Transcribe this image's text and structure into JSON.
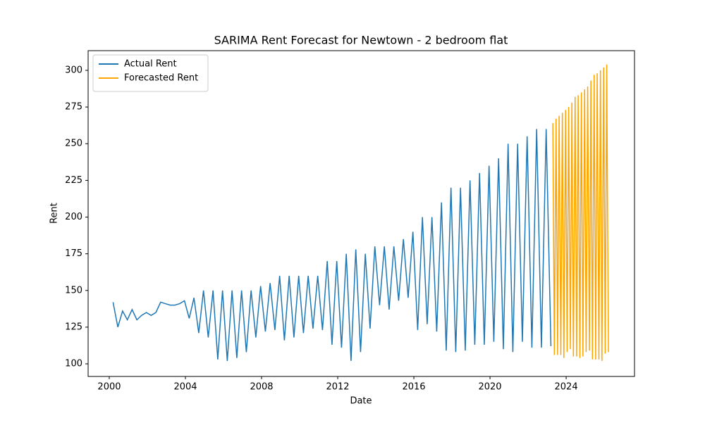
{
  "chart_data": {
    "type": "line",
    "title": "SARIMA Rent Forecast for Newtown - 2 bedroom flat",
    "x_label": "Date",
    "y_label": "Rent",
    "xlim": [
      1998.89,
      2027.59
    ],
    "ylim": [
      91.4,
      313.4
    ],
    "xticks": [
      2000,
      2004,
      2008,
      2012,
      2016,
      2020,
      2024
    ],
    "yticks": [
      100,
      125,
      150,
      175,
      200,
      225,
      250,
      275,
      300
    ],
    "legend": "upper left",
    "grid": false,
    "series": [
      {
        "name": "Actual Rent",
        "color": "#1f77b4",
        "x": [
          2000.2,
          2000.45,
          2000.7,
          2000.95,
          2001.2,
          2001.45,
          2001.7,
          2001.95,
          2002.2,
          2002.45,
          2002.7,
          2002.95,
          2003.2,
          2003.45,
          2003.7,
          2003.95,
          2004.2,
          2004.45,
          2004.7,
          2004.95,
          2005.2,
          2005.45,
          2005.7,
          2005.95,
          2006.2,
          2006.45,
          2006.7,
          2006.95,
          2007.2,
          2007.45,
          2007.7,
          2007.95,
          2008.2,
          2008.45,
          2008.7,
          2008.95,
          2009.2,
          2009.45,
          2009.7,
          2009.95,
          2010.2,
          2010.45,
          2010.7,
          2010.95,
          2011.2,
          2011.45,
          2011.7,
          2011.95,
          2012.2,
          2012.45,
          2012.7,
          2012.95,
          2013.2,
          2013.45,
          2013.7,
          2013.95,
          2014.2,
          2014.45,
          2014.7,
          2014.95,
          2015.2,
          2015.45,
          2015.7,
          2015.95,
          2016.2,
          2016.45,
          2016.7,
          2016.95,
          2017.2,
          2017.45,
          2017.7,
          2017.95,
          2018.2,
          2018.45,
          2018.7,
          2018.95,
          2019.2,
          2019.45,
          2019.7,
          2019.95,
          2020.2,
          2020.45,
          2020.7,
          2020.95,
          2021.2,
          2021.45,
          2021.7,
          2021.95,
          2022.2,
          2022.45,
          2022.7,
          2022.95,
          2023.2
        ],
        "values": [
          142,
          125,
          136,
          130,
          137,
          130,
          133,
          135,
          133,
          135,
          142,
          141,
          140,
          140,
          141,
          143,
          131,
          145,
          121,
          150,
          118,
          150,
          103,
          150,
          102,
          150,
          104,
          150,
          108,
          150,
          118,
          153,
          122,
          155,
          123,
          160,
          116,
          160,
          118,
          160,
          121,
          160,
          124,
          160,
          123,
          170,
          113,
          170,
          111,
          175,
          102,
          178,
          108,
          175,
          124,
          180,
          140,
          180,
          137,
          180,
          143,
          185,
          145,
          190,
          123,
          200,
          127,
          200,
          122,
          210,
          109,
          220,
          108,
          220,
          109,
          225,
          113,
          230,
          113,
          235,
          115,
          240,
          110,
          250,
          108,
          250,
          115,
          255,
          111,
          260,
          111,
          260,
          112
        ]
      },
      {
        "name": "Forecasted Rent",
        "color": "#ffa500",
        "x": [
          2023.3,
          2023.38,
          2023.47,
          2023.55,
          2023.63,
          2023.72,
          2023.8,
          2023.88,
          2023.97,
          2024.05,
          2024.13,
          2024.22,
          2024.3,
          2024.38,
          2024.47,
          2024.55,
          2024.63,
          2024.72,
          2024.8,
          2024.88,
          2024.97,
          2025.05,
          2025.13,
          2025.22,
          2025.3,
          2025.38,
          2025.47,
          2025.55,
          2025.63,
          2025.72,
          2025.8,
          2025.88,
          2025.97,
          2026.05,
          2026.13,
          2026.22
        ],
        "values": [
          264,
          106,
          267,
          106,
          269,
          106,
          271,
          104,
          273,
          108,
          275,
          110,
          278,
          105,
          282,
          105,
          283,
          104,
          285,
          105,
          287,
          108,
          289,
          109,
          293,
          103,
          297,
          103,
          298,
          103,
          300,
          102,
          302,
          107,
          304,
          108
        ]
      }
    ]
  }
}
